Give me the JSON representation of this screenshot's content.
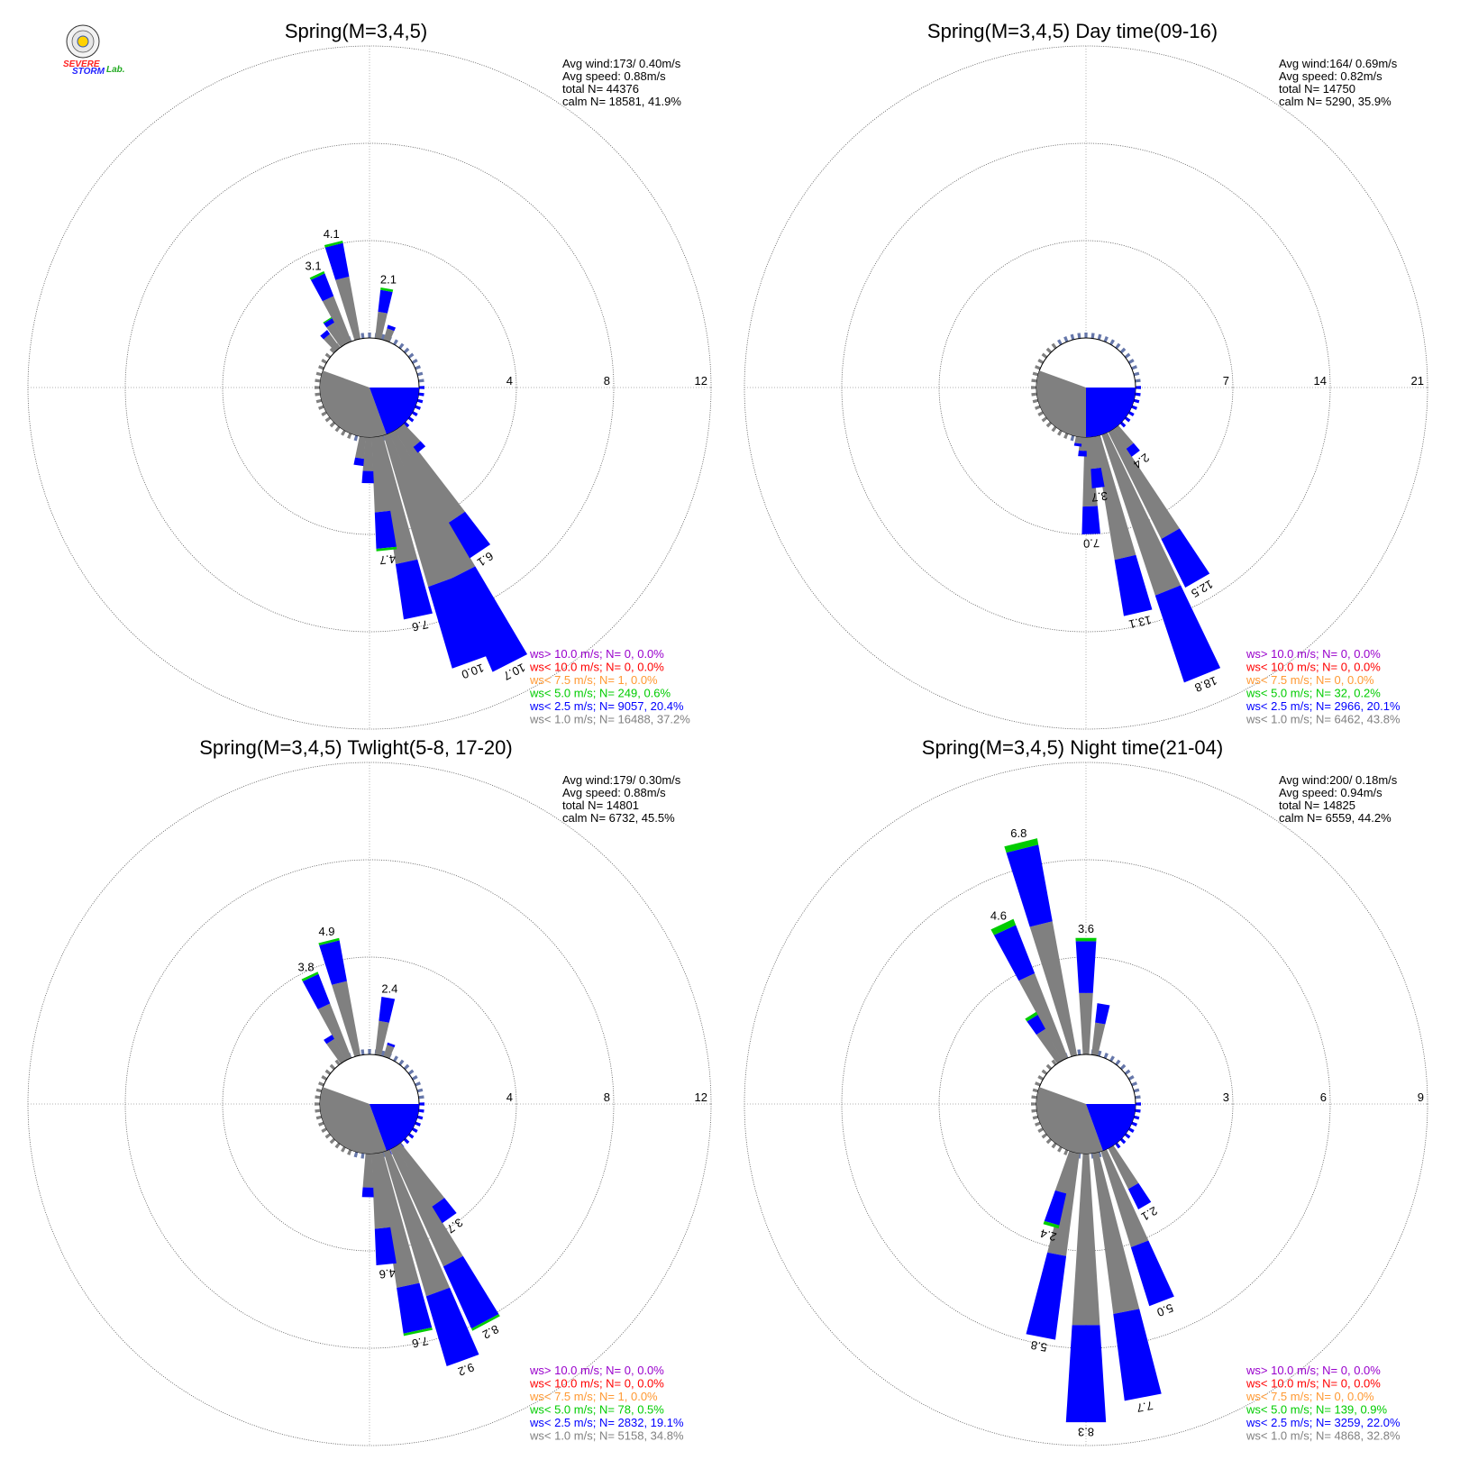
{
  "logo": {
    "line1": "SEVERE",
    "line2": "STORM",
    "line3": "Lab."
  },
  "colors": {
    "calm": "#808080",
    "lt1": "#808080",
    "lt25": "#0000ff",
    "lt5": "#00cc00",
    "lt75": "#ff9933",
    "lt10": "#ff0000",
    "gt10": "#9900cc",
    "ring": "#555555"
  },
  "chart_data": [
    {
      "type": "windrose",
      "title": "Spring(M=3,4,5)",
      "rings": [
        4,
        8,
        12
      ],
      "stats": [
        "Avg wind:173/ 0.40m/s",
        "Avg speed: 0.88m/s",
        "total N=       44376",
        "calm N=  18581,  41.9%"
      ],
      "legend": [
        {
          "label": "ws> 10.0 m/s; N=      0,  0.0%",
          "color": "#9900cc"
        },
        {
          "label": "ws< 10.0 m/s; N=      0,  0.0%",
          "color": "#ff0000"
        },
        {
          "label": "ws<  7.5 m/s; N=      1,  0.0%",
          "color": "#ff9933"
        },
        {
          "label": "ws<  5.0 m/s; N=   249,  0.6%",
          "color": "#00cc00"
        },
        {
          "label": "ws<  2.5 m/s; N=  9057, 20.4%",
          "color": "#0000ff"
        },
        {
          "label": "ws<  1.0 m/s; N= 16488, 37.2%",
          "color": "#808080"
        }
      ],
      "calm_blue_sector": [
        90,
        160
      ],
      "petals": [
        {
          "dir": 346,
          "gray": 2.6,
          "blue": 1.4,
          "green": 0.1,
          "label": "4.1"
        },
        {
          "dir": 335,
          "gray": 2.0,
          "blue": 1.0,
          "green": 0.1,
          "label": "3.1"
        },
        {
          "dir": 10,
          "gray": 1.1,
          "blue": 0.9,
          "green": 0.1,
          "label": "2.1"
        },
        {
          "dir": 168,
          "gray": 5.3,
          "blue": 2.3,
          "green": 0.0,
          "label": "7.6"
        },
        {
          "dir": 160,
          "gray": 6.5,
          "blue": 3.5,
          "green": 0.0,
          "label": "10.0"
        },
        {
          "dir": 153,
          "gray": 6.5,
          "blue": 4.2,
          "green": 0.0,
          "label": "10.7"
        },
        {
          "dir": 146,
          "gray": 4.4,
          "blue": 1.7,
          "green": 0.0,
          "label": "6.1"
        },
        {
          "dir": 174,
          "gray": 3.1,
          "blue": 1.5,
          "green": 0.1,
          "label": "4.7"
        },
        {
          "dir": 328,
          "gray": 1.0,
          "blue": 0.2,
          "green": 0.05
        },
        {
          "dir": 320,
          "gray": 0.7,
          "blue": 0.2
        },
        {
          "dir": 20,
          "gray": 0.5,
          "blue": 0.15
        },
        {
          "dir": 181,
          "gray": 1.4,
          "blue": 0.5
        },
        {
          "dir": 140,
          "gray": 1.0,
          "blue": 0.3
        },
        {
          "dir": 188,
          "gray": 0.9,
          "blue": 0.3
        }
      ]
    },
    {
      "type": "windrose",
      "title": "Spring(M=3,4,5) Day time(09-16)",
      "rings": [
        7,
        14,
        21
      ],
      "stats": [
        "Avg wind:164/ 0.69m/s",
        "Avg speed: 0.82m/s",
        "total N=       14750",
        "calm N=   5290,  35.9%"
      ],
      "legend": [
        {
          "label": "ws> 10.0 m/s; N=      0,  0.0%",
          "color": "#9900cc"
        },
        {
          "label": "ws< 10.0 m/s; N=      0,  0.0%",
          "color": "#ff0000"
        },
        {
          "label": "ws<  7.5 m/s; N=      0,  0.0%",
          "color": "#ff9933"
        },
        {
          "label": "ws<  5.0 m/s; N=     32,  0.2%",
          "color": "#00cc00"
        },
        {
          "label": "ws<  2.5 m/s; N=  2966, 20.1%",
          "color": "#0000ff"
        },
        {
          "label": "ws<  1.0 m/s; N=  6462, 43.8%",
          "color": "#808080"
        }
      ],
      "calm_blue_sector": [
        90,
        180
      ],
      "petals": [
        {
          "dir": 167,
          "gray": 9.0,
          "blue": 4.1,
          "green": 0.0,
          "label": "13.1"
        },
        {
          "dir": 158,
          "gray": 12.2,
          "blue": 6.6,
          "green": 0.0,
          "label": "18.8"
        },
        {
          "dir": 150,
          "gray": 8.6,
          "blue": 3.9,
          "green": 0.0,
          "label": "12.5"
        },
        {
          "dir": 178,
          "gray": 5.0,
          "blue": 2.0,
          "green": 0.0,
          "label": "7.0"
        },
        {
          "dir": 173,
          "gray": 2.3,
          "blue": 1.4,
          "green": 0.0,
          "label": "3.7"
        },
        {
          "dir": 143,
          "gray": 1.7,
          "blue": 0.7,
          "green": 0.0,
          "label": "2.4"
        },
        {
          "dir": 183,
          "gray": 1.0,
          "blue": 0.4
        },
        {
          "dir": 188,
          "gray": 0.5,
          "blue": 0.2
        }
      ]
    },
    {
      "type": "windrose",
      "title": "Spring(M=3,4,5) Twlight(5-8, 17-20)",
      "rings": [
        4,
        8,
        12
      ],
      "stats": [
        "Avg wind:179/ 0.30m/s",
        "Avg speed: 0.88m/s",
        "total N=       14801",
        "calm N=   6732,  45.5%"
      ],
      "legend": [
        {
          "label": "ws> 10.0 m/s; N=      0,  0.0%",
          "color": "#9900cc"
        },
        {
          "label": "ws< 10.0 m/s; N=      0,  0.0%",
          "color": "#ff0000"
        },
        {
          "label": "ws<  7.5 m/s; N=      1,  0.0%",
          "color": "#ff9933"
        },
        {
          "label": "ws<  5.0 m/s; N=     78,  0.5%",
          "color": "#00cc00"
        },
        {
          "label": "ws<  2.5 m/s; N=  2832, 19.1%",
          "color": "#0000ff"
        },
        {
          "label": "ws<  1.0 m/s; N=  5158, 34.8%",
          "color": "#808080"
        }
      ],
      "calm_blue_sector": [
        90,
        160
      ],
      "petals": [
        {
          "dir": 346,
          "gray": 3.1,
          "blue": 1.7,
          "green": 0.1,
          "label": "4.9"
        },
        {
          "dir": 335,
          "gray": 2.4,
          "blue": 1.3,
          "green": 0.1,
          "label": "3.8"
        },
        {
          "dir": 10,
          "gray": 1.4,
          "blue": 1.0,
          "green": 0.0,
          "label": "2.4"
        },
        {
          "dir": 168,
          "gray": 5.6,
          "blue": 1.9,
          "green": 0.1,
          "label": "7.6"
        },
        {
          "dir": 160,
          "gray": 6.2,
          "blue": 3.0,
          "green": 0.0,
          "label": "9.2"
        },
        {
          "dir": 152,
          "gray": 5.3,
          "blue": 2.8,
          "green": 0.1,
          "label": "8.2"
        },
        {
          "dir": 145,
          "gray": 2.9,
          "blue": 0.8,
          "green": 0.0,
          "label": "3.7"
        },
        {
          "dir": 174,
          "gray": 3.1,
          "blue": 1.5,
          "green": 0.0,
          "label": "4.6"
        },
        {
          "dir": 328,
          "gray": 1.0,
          "blue": 0.2
        },
        {
          "dir": 20,
          "gray": 0.5,
          "blue": 0.1
        },
        {
          "dir": 181,
          "gray": 1.4,
          "blue": 0.4
        }
      ]
    },
    {
      "type": "windrose",
      "title": "Spring(M=3,4,5) Night time(21-04)",
      "rings": [
        3,
        6,
        9
      ],
      "stats": [
        "Avg wind:200/ 0.18m/s",
        "Avg speed: 0.94m/s",
        "total N=       14825",
        "calm N=   6559,  44.2%"
      ],
      "legend": [
        {
          "label": "ws> 10.0 m/s; N=      0,  0.0%",
          "color": "#9900cc"
        },
        {
          "label": "ws< 10.0 m/s; N=      0,  0.0%",
          "color": "#ff0000"
        },
        {
          "label": "ws<  7.5 m/s; N=      0,  0.0%",
          "color": "#ff9933"
        },
        {
          "label": "ws<  5.0 m/s; N=   139,  0.9%",
          "color": "#00cc00"
        },
        {
          "label": "ws<  2.5 m/s; N=  3259, 22.0%",
          "color": "#0000ff"
        },
        {
          "label": "ws<  1.0 m/s; N=  4868, 32.8%",
          "color": "#808080"
        }
      ],
      "calm_blue_sector": [
        90,
        160
      ],
      "petals": [
        {
          "dir": 346,
          "gray": 4.2,
          "blue": 2.4,
          "green": 0.2,
          "label": "6.8"
        },
        {
          "dir": 335,
          "gray": 2.8,
          "blue": 1.6,
          "green": 0.2,
          "label": "4.6"
        },
        {
          "dir": 0,
          "gray": 1.9,
          "blue": 1.6,
          "green": 0.1,
          "label": "3.6"
        },
        {
          "dir": 180,
          "gray": 5.3,
          "blue": 3.0,
          "green": 0.0,
          "label": "8.3"
        },
        {
          "dir": 169,
          "gray": 5.0,
          "blue": 2.7,
          "green": 0.0,
          "label": "7.7"
        },
        {
          "dir": 159,
          "gray": 3.1,
          "blue": 1.9,
          "green": 0.0,
          "label": "5.0"
        },
        {
          "dir": 191,
          "gray": 3.2,
          "blue": 2.6,
          "green": 0.0,
          "label": "5.8"
        },
        {
          "dir": 196,
          "gray": 1.3,
          "blue": 1.0,
          "green": 0.1,
          "label": "2.4"
        },
        {
          "dir": 150,
          "gray": 1.4,
          "blue": 0.7,
          "green": 0.0,
          "label": "2.1"
        },
        {
          "dir": 328,
          "gray": 1.1,
          "blue": 0.5,
          "green": 0.1
        },
        {
          "dir": 10,
          "gray": 1.0,
          "blue": 0.6
        }
      ]
    }
  ]
}
